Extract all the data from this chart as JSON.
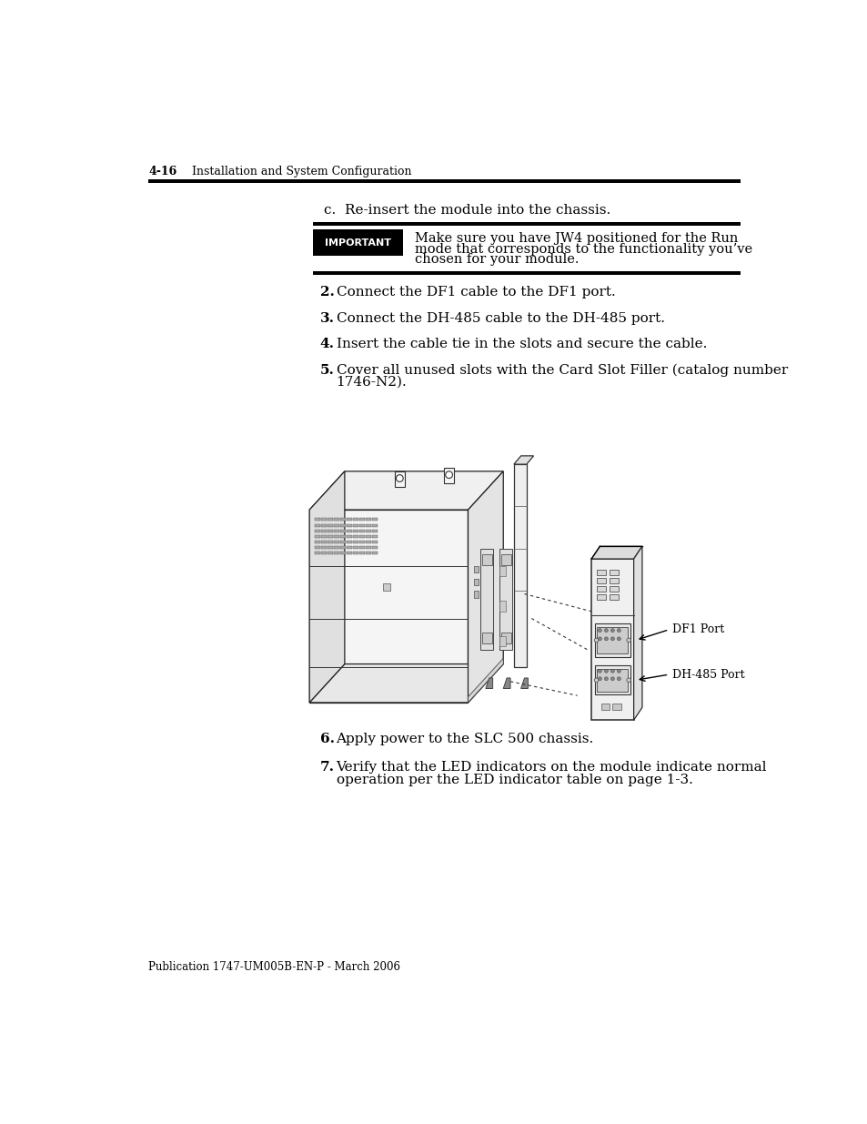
{
  "bg_color": "#ffffff",
  "page_header_number": "4-16",
  "page_header_text": "Installation and System Configuration",
  "step_c_text": "c.  Re-insert the module into the chassis.",
  "important_box_text": "IMPORTANT",
  "important_note_line1": "Make sure you have JW4 positioned for the Run",
  "important_note_line2": "mode that corresponds to the functionality you’ve",
  "important_note_line3": "chosen for your module.",
  "steps": [
    {
      "num": "2.",
      "text": "Connect the DF1 cable to the DF1 port.",
      "continuation": ""
    },
    {
      "num": "3.",
      "text": "Connect the DH-485 cable to the DH-485 port.",
      "continuation": ""
    },
    {
      "num": "4.",
      "text": "Insert the cable tie in the slots and secure the cable.",
      "continuation": ""
    },
    {
      "num": "5.",
      "text": "Cover all unused slots with the Card Slot Filler (catalog number",
      "continuation": "1746-N2)."
    }
  ],
  "steps_bottom": [
    {
      "num": "6.",
      "text": "Apply power to the SLC 500 chassis.",
      "continuation": ""
    },
    {
      "num": "7.",
      "text": "Verify that the LED indicators on the module indicate normal",
      "continuation": "operation per the LED indicator table on page 1-3."
    }
  ],
  "footer_text": "Publication 1747-UM005B-EN-P - March 2006",
  "df1_port_label": "DF1 Port",
  "dh485_port_label": "DH-485 Port"
}
